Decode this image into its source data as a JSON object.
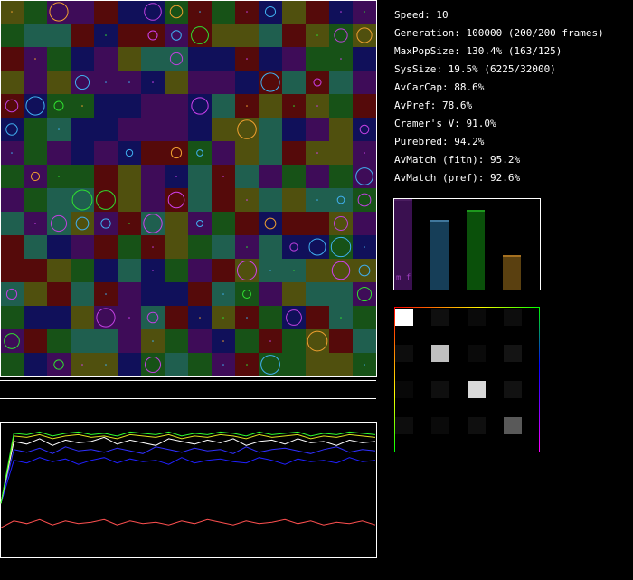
{
  "stats": [
    "Speed: 10",
    "Generation: 100000 (200/200 frames)",
    "MaxPopSize: 130.4% (163/125)",
    "SysSize: 19.5% (6225/32000)",
    "AvCarCap: 88.6%",
    "AvPref: 78.6%",
    "Cramer's V: 91.0%",
    "Purebred: 94.2%",
    "AvMatch (fitn): 95.2%",
    "AvMatch (pref): 92.6%"
  ],
  "bar_panel": {
    "label": "m f",
    "bars": [
      {
        "color": "#3a1050",
        "top": "#5a2a70",
        "value": 100
      },
      {
        "color": "#163e58",
        "top": "#6ab0e0",
        "value": 77
      },
      {
        "color": "#0a500a",
        "top": "#30e030",
        "value": 88
      },
      {
        "color": "#5a4010",
        "top": "#f0a030",
        "value": 38
      }
    ]
  },
  "matrix": [
    [
      100,
      6,
      4,
      5
    ],
    [
      5,
      75,
      4,
      8
    ],
    [
      3,
      6,
      85,
      7
    ],
    [
      5,
      4,
      6,
      35
    ]
  ],
  "history": [
    {
      "color": "#ff5050",
      "values": [
        22,
        27,
        25,
        28,
        24,
        27,
        25,
        26,
        28,
        24,
        27,
        25,
        26,
        24,
        27,
        25,
        28,
        26,
        24,
        27,
        25,
        26,
        28,
        25,
        27,
        24,
        26,
        25,
        27,
        24
      ]
    },
    {
      "color": "#2020ff",
      "values": [
        40,
        72,
        70,
        74,
        71,
        73,
        69,
        72,
        74,
        70,
        73,
        71,
        72,
        69,
        74,
        70,
        72,
        73,
        71,
        70,
        74,
        72,
        69,
        73,
        71,
        72,
        70,
        74,
        71,
        72
      ]
    },
    {
      "color": "#3030ff",
      "values": [
        40,
        80,
        78,
        81,
        77,
        82,
        79,
        80,
        78,
        81,
        79,
        77,
        82,
        80,
        78,
        81,
        79,
        80,
        77,
        82,
        78,
        80,
        81,
        79,
        77,
        80,
        82,
        78,
        80,
        79
      ]
    },
    {
      "color": "#ffffff",
      "values": [
        40,
        86,
        84,
        88,
        83,
        87,
        85,
        86,
        89,
        84,
        87,
        85,
        83,
        88,
        86,
        84,
        87,
        85,
        88,
        83,
        86,
        87,
        84,
        88,
        85,
        86,
        83,
        87,
        85,
        86
      ]
    },
    {
      "color": "#e0e020",
      "values": [
        40,
        90,
        89,
        91,
        88,
        90,
        91,
        89,
        90,
        88,
        91,
        90,
        89,
        91,
        88,
        90,
        89,
        91,
        90,
        88,
        91,
        89,
        90,
        91,
        88,
        90,
        89,
        91,
        90,
        89
      ]
    },
    {
      "color": "#30ff30",
      "values": [
        40,
        92,
        91,
        93,
        90,
        92,
        93,
        91,
        92,
        90,
        93,
        92,
        91,
        93,
        90,
        92,
        91,
        93,
        92,
        90,
        93,
        91,
        92,
        93,
        90,
        92,
        91,
        93,
        92,
        91
      ]
    }
  ]
}
